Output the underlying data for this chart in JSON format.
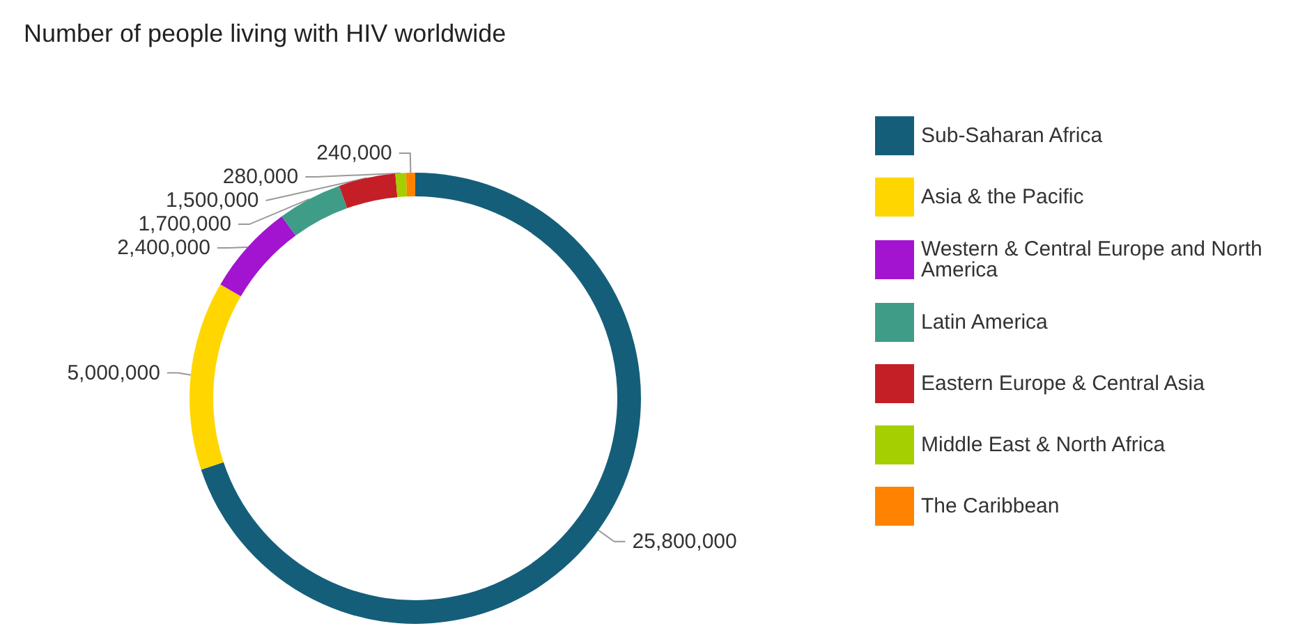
{
  "chart_data": {
    "type": "donut",
    "title": "Number of people living with HIV worldwide",
    "categories": [
      "Sub-Saharan Africa",
      "Asia & the Pacific",
      "Western & Central Europe and North America",
      "Latin America",
      "Eastern Europe & Central Asia",
      "Middle East & North Africa",
      "The Caribbean"
    ],
    "values": [
      25800000,
      5000000,
      2400000,
      1700000,
      1500000,
      280000,
      240000
    ],
    "value_labels": [
      "25,800,000",
      "5,000,000",
      "2,400,000",
      "1,700,000",
      "1,500,000",
      "280,000",
      "240,000"
    ],
    "colors": [
      "#155e7a",
      "#ffd600",
      "#a214cf",
      "#3f9c87",
      "#c41e26",
      "#a5cf00",
      "#ff8300"
    ],
    "legend": "right"
  }
}
